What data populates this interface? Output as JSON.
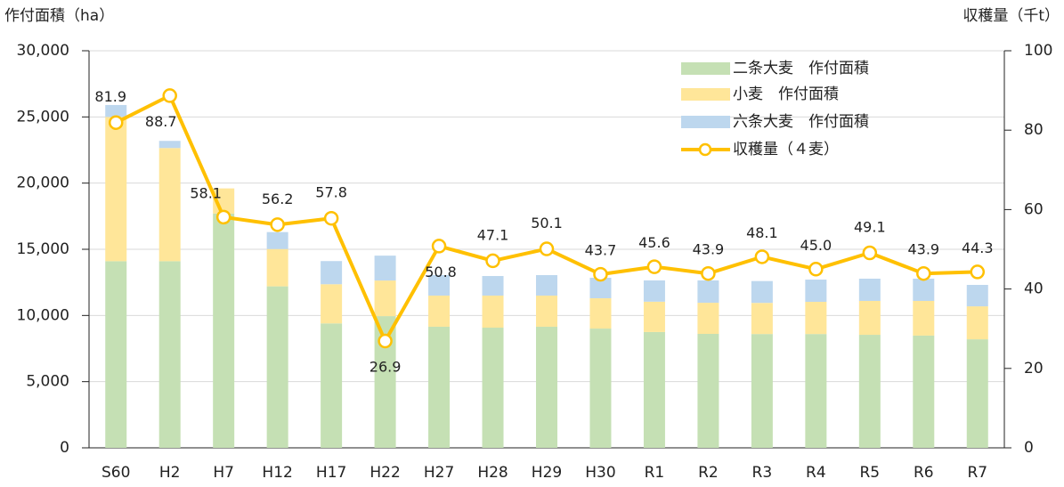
{
  "chart_data": {
    "type": "bar",
    "y_axis_label": "作付面積（ha）",
    "y2_axis_label": "収穫量（千t）",
    "categories": [
      "S60",
      "H2",
      "H7",
      "H12",
      "H17",
      "H22",
      "H27",
      "H28",
      "H29",
      "H30",
      "R1",
      "R2",
      "R3",
      "R4",
      "R5",
      "R6",
      "R7"
    ],
    "series": [
      {
        "name": "二条大麦　作付面積",
        "color": "#c5e0b4",
        "values": [
          14100,
          14100,
          17700,
          12200,
          9400,
          9950,
          9150,
          9080,
          9150,
          9010,
          8750,
          8610,
          8600,
          8600,
          8540,
          8480,
          8200
        ]
      },
      {
        "name": "小麦　作付面積",
        "color": "#ffe699",
        "values": [
          10900,
          8550,
          1900,
          2820,
          2960,
          2690,
          2350,
          2420,
          2350,
          2290,
          2290,
          2350,
          2350,
          2430,
          2560,
          2620,
          2490
        ]
      },
      {
        "name": "六条大麦　作付面積",
        "color": "#bdd7ee",
        "values": [
          900,
          540,
          0,
          1280,
          1750,
          1880,
          1550,
          1480,
          1550,
          1550,
          1610,
          1690,
          1650,
          1680,
          1680,
          1680,
          1620
        ]
      },
      {
        "name": "収穫量（４麦）",
        "color": "#ffc000",
        "type": "line",
        "axis": "y2",
        "values": [
          81.9,
          88.7,
          58.1,
          56.2,
          57.8,
          26.9,
          50.8,
          47.1,
          50.1,
          43.7,
          45.6,
          43.9,
          48.1,
          45.0,
          49.1,
          43.9,
          44.3
        ],
        "value_labels": [
          "81.9",
          "88.7",
          "58.1",
          "56.2",
          "57.8",
          "26.9",
          "50.8",
          "47.1",
          "50.1",
          "43.7",
          "45.6",
          "43.9",
          "48.1",
          "45.0",
          "49.1",
          "43.9",
          "44.3"
        ]
      }
    ],
    "stacked": true,
    "ylim": [
      0,
      30000
    ],
    "yticks": [
      0,
      {
        "value": 5000,
        "label": "5,000"
      },
      {
        "value": 10000,
        "label": "10,000"
      },
      {
        "value": 15000,
        "label": "15,000"
      },
      {
        "value": 20000,
        "label": "20,000"
      },
      {
        "value": 25000,
        "label": "25,000"
      },
      {
        "value": 30000,
        "label": "30,000"
      }
    ],
    "y2lim": [
      0,
      100
    ],
    "y2ticks": [
      0,
      20,
      40,
      60,
      80,
      100
    ],
    "grid": true,
    "legend": "upper right"
  }
}
